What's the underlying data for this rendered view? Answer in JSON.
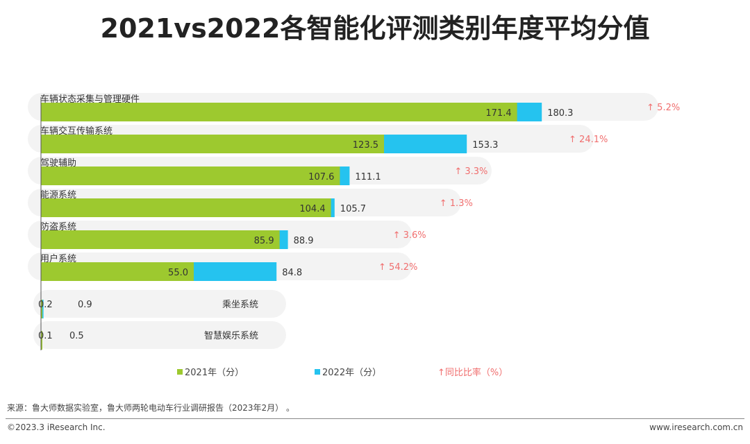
{
  "title": "2021vs2022各智能化评测类别年度平均分值",
  "colors": {
    "y2021": "#9dc92f",
    "y2022": "#25c3ef",
    "pill": "#f3f3f3",
    "rate": "#f06e6e"
  },
  "legend": {
    "y2021": "2021年（分）",
    "y2022": "2022年（分）",
    "rate": "↑同比比率（%）"
  },
  "chart_data": {
    "type": "bar",
    "orientation": "horizontal",
    "title": "2021vs2022各智能化评测类别年度平均分值",
    "categories": [
      "车辆状态采集与管理硬件",
      "车辆交互传输系统",
      "驾驶辅助",
      "能源系统",
      "防盗系统",
      "用户系统",
      "乘坐系统",
      "智慧娱乐系统"
    ],
    "series": [
      {
        "name": "2021年（分）",
        "values": [
          171.4,
          123.5,
          107.6,
          104.4,
          85.9,
          55.0,
          0.2,
          0.1
        ],
        "labels": [
          "171.4",
          "123.5",
          "107.6",
          "104.4",
          "85.9",
          "55.0",
          "0.2",
          "0.1"
        ]
      },
      {
        "name": "2022年（分）",
        "values": [
          180.3,
          153.3,
          111.1,
          105.7,
          88.9,
          84.8,
          0.9,
          0.5
        ],
        "labels": [
          "180.3",
          "153.3",
          "111.1",
          "105.7",
          "88.9",
          "84.8",
          "0.9",
          "0.5"
        ]
      }
    ],
    "growth_labels": [
      "↑ 5.2%",
      "↑ 24.1%",
      "↑ 3.3%",
      "↑ 1.3%",
      "↑ 3.6%",
      "↑ 54.2%",
      "",
      ""
    ],
    "legend_position": "bottom",
    "grid": false
  },
  "source": "来源：鲁大师数据实验室，鲁大师两轮电动车行业调研报告（2023年2月） 。",
  "copyright": "©2023.3 iResearch Inc.",
  "website": "www.iresearch.com.cn"
}
